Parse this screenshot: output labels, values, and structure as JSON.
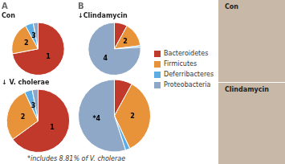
{
  "chart_data": [
    {
      "type": "pie",
      "title": "A",
      "subtitle": "Con",
      "categories": [
        "Bacteroidetes",
        "Firmicutes",
        "Deferribacteres",
        "Proteobacteria"
      ],
      "values": [
        72,
        20,
        5,
        3
      ],
      "colors": [
        "#c0392b",
        "#e8923a",
        "#5dade2",
        "#8fa8c8"
      ],
      "annotations": [
        {
          "text": "1",
          "category": "Bacteroidetes"
        },
        {
          "text": "2",
          "category": "Firmicutes"
        },
        {
          "text": "3",
          "category": "Deferribacteres"
        }
      ]
    },
    {
      "type": "pie",
      "subtitle": "↓ V. cholerae",
      "categories": [
        "Bacteroidetes",
        "Firmicutes",
        "Deferribacteres",
        "Proteobacteria"
      ],
      "values": [
        65,
        28,
        4,
        3
      ],
      "colors": [
        "#c0392b",
        "#e8923a",
        "#5dade2",
        "#8fa8c8"
      ],
      "annotations": [
        {
          "text": "1",
          "category": "Bacteroidetes"
        },
        {
          "text": "2",
          "category": "Firmicutes"
        },
        {
          "text": "3",
          "category": "Deferribacteres"
        }
      ]
    },
    {
      "type": "pie",
      "title": "B",
      "subtitle": "↓Clindamycin",
      "categories": [
        "Bacteroidetes",
        "Firmicutes",
        "Deferribacteres",
        "Proteobacteria"
      ],
      "values": [
        8,
        15,
        1,
        76
      ],
      "colors": [
        "#c0392b",
        "#e8923a",
        "#5dade2",
        "#8fa8c8"
      ],
      "annotations": [
        {
          "text": "4",
          "category": "Proteobacteria"
        },
        {
          "text": "2",
          "category": "Firmicutes"
        }
      ]
    },
    {
      "type": "pie",
      "categories": [
        "Bacteroidetes",
        "Firmicutes",
        "Deferribacteres",
        "Proteobacteria"
      ],
      "values": [
        8,
        35,
        2,
        55
      ],
      "colors": [
        "#c0392b",
        "#e8923a",
        "#5dade2",
        "#8fa8c8"
      ],
      "annotations": [
        {
          "text": "2",
          "category": "Firmicutes"
        },
        {
          "text": "*4",
          "category": "Proteobacteria"
        }
      ]
    }
  ],
  "legend": "right",
  "footnote": "*includes 8.81% of V. cholerae",
  "photo": {
    "labels": [
      "Con",
      "Clindamycin"
    ],
    "color": "#c8b8a8"
  }
}
